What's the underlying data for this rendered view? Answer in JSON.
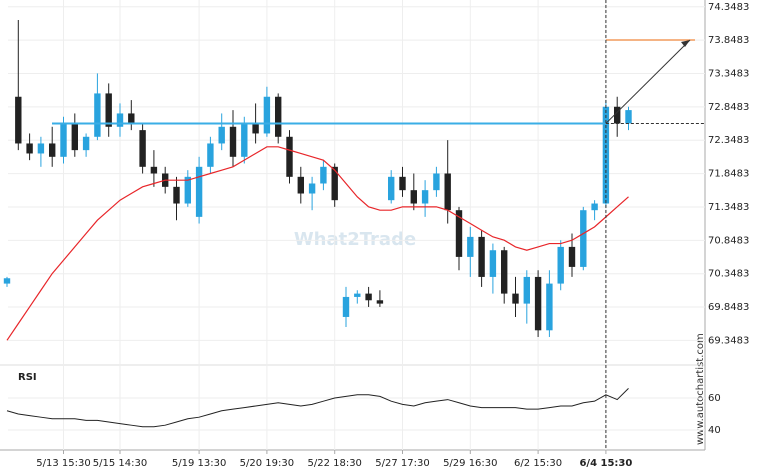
{
  "chart_data": [
    {
      "type": "candlestick",
      "categories": [
        null,
        null,
        null,
        null,
        null,
        "5/13 15:30",
        null,
        null,
        null,
        null,
        "5/15 14:30",
        null,
        null,
        null,
        null,
        null,
        null,
        "5/19 13:30",
        null,
        null,
        null,
        null,
        null,
        "5/20 19:30",
        null,
        null,
        null,
        null,
        null,
        "5/22 18:30",
        null,
        null,
        null,
        null,
        null,
        "5/27 17:30",
        null,
        null,
        null,
        null,
        null,
        "5/29 16:30",
        null,
        null,
        null,
        null,
        null,
        "6/2 15:30",
        null,
        null,
        null,
        null,
        null,
        "6/4 15:30",
        null,
        null
      ],
      "open": [
        70.2,
        73.0,
        72.3,
        72.15,
        72.3,
        72.1,
        72.6,
        72.2,
        72.4,
        73.05,
        72.55,
        72.75,
        72.5,
        71.95,
        71.85,
        71.65,
        71.4,
        71.2,
        71.95,
        72.3,
        72.55,
        72.1,
        72.6,
        72.45,
        73.0,
        72.4,
        71.8,
        71.55,
        71.7,
        71.95,
        69.7,
        70.0,
        70.05,
        69.95,
        71.45,
        71.8,
        71.6,
        71.4,
        71.6,
        71.85,
        71.3,
        70.6,
        70.9,
        70.3,
        70.7,
        70.05,
        69.9,
        70.3,
        69.5,
        70.2,
        70.75,
        70.45,
        71.3,
        71.4,
        72.85,
        72.6
      ],
      "high": [
        70.3,
        74.15,
        72.45,
        72.4,
        72.55,
        72.7,
        72.75,
        72.45,
        73.35,
        73.2,
        72.9,
        72.95,
        72.6,
        72.2,
        71.95,
        71.8,
        71.9,
        72.1,
        72.4,
        72.75,
        72.8,
        72.7,
        72.9,
        73.15,
        73.05,
        72.5,
        71.95,
        71.8,
        72.05,
        72.0,
        70.15,
        70.1,
        70.15,
        70.1,
        71.9,
        71.95,
        71.85,
        71.75,
        71.95,
        72.35,
        71.35,
        71.05,
        71.0,
        70.8,
        70.75,
        70.3,
        70.4,
        70.4,
        70.4,
        70.85,
        70.95,
        71.35,
        71.45,
        72.95,
        73.0,
        72.85
      ],
      "low": [
        70.15,
        72.2,
        72.05,
        71.95,
        71.95,
        72.0,
        72.1,
        72.1,
        72.35,
        72.4,
        72.4,
        72.5,
        71.85,
        71.65,
        71.55,
        71.15,
        71.35,
        71.1,
        71.85,
        72.2,
        71.95,
        72.0,
        72.3,
        72.4,
        72.3,
        71.7,
        71.4,
        71.3,
        71.6,
        71.35,
        69.55,
        69.9,
        69.85,
        69.85,
        71.4,
        71.5,
        71.3,
        71.2,
        71.5,
        71.1,
        70.4,
        70.3,
        70.15,
        70.05,
        69.9,
        69.7,
        69.6,
        69.4,
        69.4,
        70.1,
        70.3,
        70.4,
        71.15,
        71.35,
        72.4,
        72.5
      ],
      "close": [
        70.28,
        72.3,
        72.15,
        72.3,
        72.1,
        72.6,
        72.2,
        72.4,
        73.05,
        72.55,
        72.75,
        72.6,
        71.95,
        71.85,
        71.65,
        71.4,
        71.8,
        71.95,
        72.3,
        72.55,
        72.1,
        72.6,
        72.45,
        73.0,
        72.4,
        71.8,
        71.55,
        71.7,
        71.95,
        71.45,
        70.0,
        70.05,
        69.95,
        69.9,
        71.8,
        71.6,
        71.4,
        71.6,
        71.85,
        71.3,
        70.6,
        70.9,
        70.3,
        70.7,
        70.05,
        69.9,
        70.3,
        69.5,
        70.2,
        70.75,
        70.45,
        71.3,
        71.4,
        72.85,
        72.6,
        72.8
      ],
      "up_color": "#29a3de",
      "down_color": "#222222",
      "moving_average": {
        "color": "#e8262a",
        "values": [
          69.35,
          69.6,
          69.85,
          70.1,
          70.35,
          70.55,
          70.75,
          70.95,
          71.15,
          71.3,
          71.45,
          71.55,
          71.65,
          71.7,
          71.75,
          71.75,
          71.75,
          71.8,
          71.85,
          71.9,
          71.95,
          72.05,
          72.15,
          72.25,
          72.25,
          72.2,
          72.15,
          72.1,
          72.05,
          71.9,
          71.7,
          71.5,
          71.35,
          71.3,
          71.3,
          71.35,
          71.35,
          71.35,
          71.35,
          71.3,
          71.2,
          71.1,
          71.0,
          70.9,
          70.85,
          70.75,
          70.7,
          70.75,
          70.8,
          70.8,
          70.85,
          70.95,
          71.05,
          71.2,
          71.35,
          71.5
        ]
      },
      "support_level": 72.6,
      "support_color": "#3aaee6",
      "target_level": 73.85,
      "target_color": "#f0883c",
      "ylim": [
        68.98,
        74.45
      ],
      "yticks": [
        74.3483,
        73.8483,
        73.3483,
        72.8483,
        72.3483,
        71.8483,
        71.3483,
        70.8483,
        70.3483,
        69.8483,
        69.3483
      ],
      "grid": true
    },
    {
      "type": "line",
      "title": "RSI",
      "color": "#222222",
      "values": [
        52,
        50,
        49,
        48,
        47,
        47,
        47,
        46,
        46,
        45,
        44,
        43,
        42,
        42,
        43,
        45,
        47,
        48,
        50,
        52,
        53,
        54,
        55,
        56,
        57,
        56,
        55,
        56,
        58,
        60,
        61,
        62,
        62,
        61,
        58,
        56,
        55,
        57,
        58,
        59,
        57,
        55,
        54,
        54,
        54,
        54,
        53,
        53,
        54,
        55,
        55,
        57,
        58,
        62,
        59,
        66
      ],
      "ylim": [
        27.5,
        80.6
      ],
      "yticks": [
        60,
        40
      ],
      "grid": true
    }
  ],
  "watermark": "What2Trade",
  "source": "www.autochartist.com"
}
